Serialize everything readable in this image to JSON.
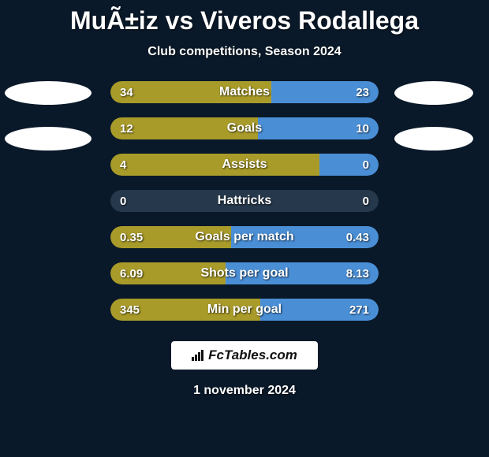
{
  "title": "MuÃ±iz vs Viveros Rodallega",
  "subtitle": "Club competitions, Season 2024",
  "date": "1 november 2024",
  "logo_text": "FcTables.com",
  "colors": {
    "background": "#0a1929",
    "left_bar": "#a99b2a",
    "right_bar": "#4a8fd6",
    "empty_bar": "#26384c",
    "ellipse": "#ffffff"
  },
  "stats": [
    {
      "label": "Matches",
      "left_val": "34",
      "right_val": "23",
      "left_pct": 60,
      "right_pct": 40,
      "left_color": "#a99b2a",
      "right_color": "#4a8fd6"
    },
    {
      "label": "Goals",
      "left_val": "12",
      "right_val": "10",
      "left_pct": 55,
      "right_pct": 45,
      "left_color": "#a99b2a",
      "right_color": "#4a8fd6"
    },
    {
      "label": "Assists",
      "left_val": "4",
      "right_val": "0",
      "left_pct": 78,
      "right_pct": 22,
      "left_color": "#a99b2a",
      "right_color": "#4a8fd6"
    },
    {
      "label": "Hattricks",
      "left_val": "0",
      "right_val": "0",
      "left_pct": 50,
      "right_pct": 50,
      "left_color": "#26384c",
      "right_color": "#26384c"
    },
    {
      "label": "Goals per match",
      "left_val": "0.35",
      "right_val": "0.43",
      "left_pct": 45,
      "right_pct": 55,
      "left_color": "#a99b2a",
      "right_color": "#4a8fd6"
    },
    {
      "label": "Shots per goal",
      "left_val": "6.09",
      "right_val": "8.13",
      "left_pct": 43,
      "right_pct": 57,
      "left_color": "#a99b2a",
      "right_color": "#4a8fd6"
    },
    {
      "label": "Min per goal",
      "left_val": "345",
      "right_val": "271",
      "left_pct": 56,
      "right_pct": 44,
      "left_color": "#a99b2a",
      "right_color": "#4a8fd6"
    }
  ]
}
